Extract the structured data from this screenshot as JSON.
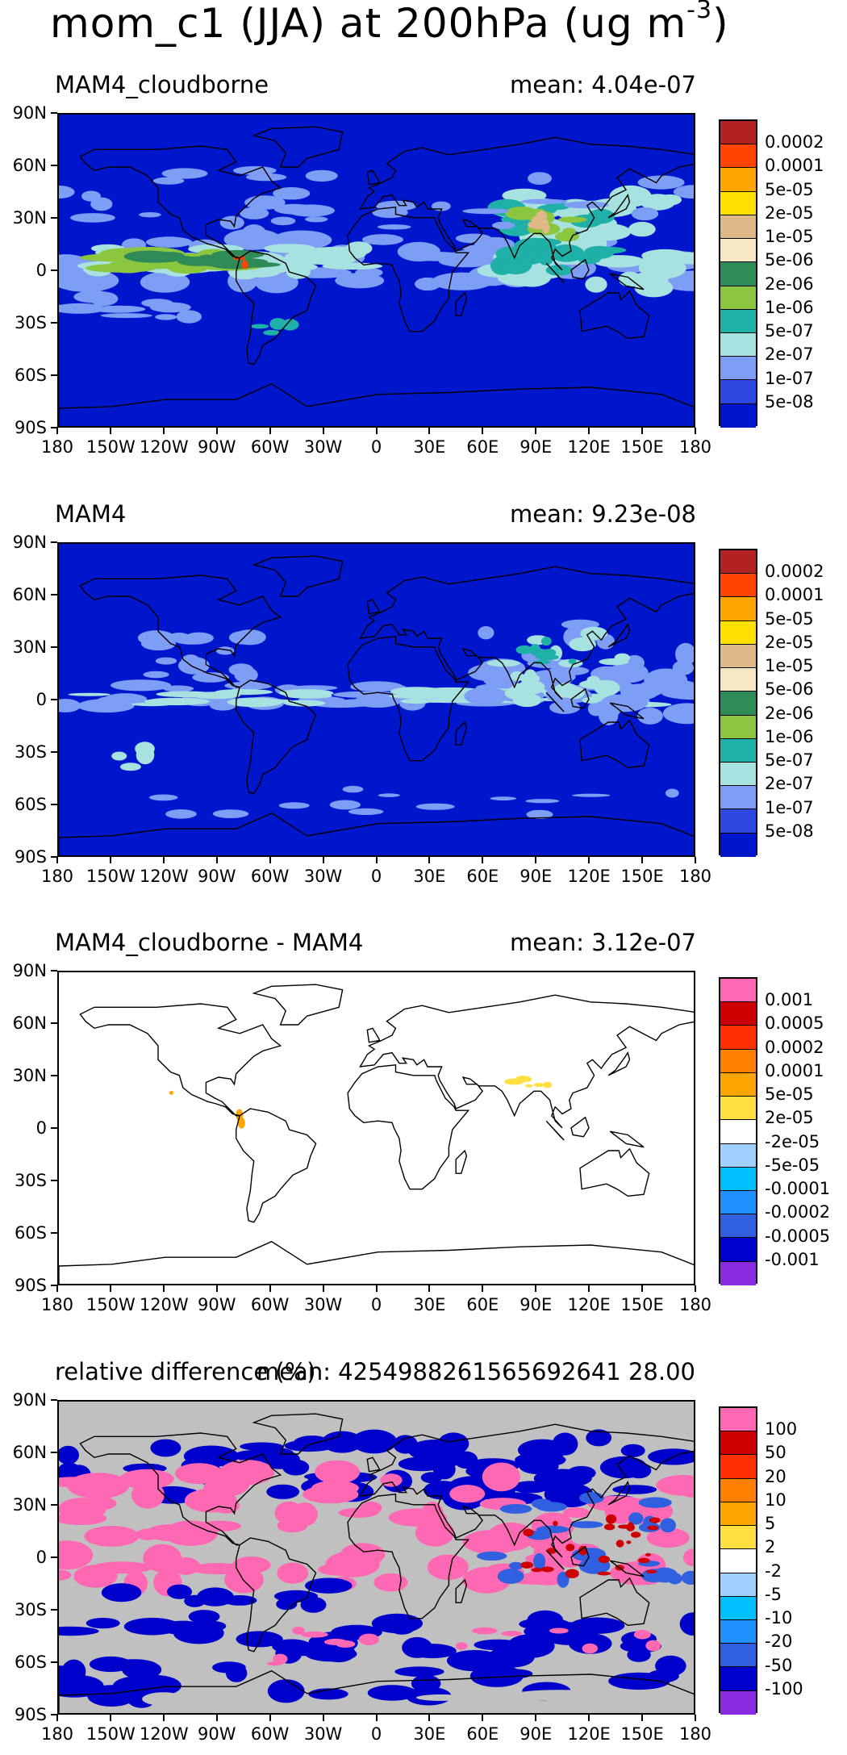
{
  "title_main": "mom_c1 (JJA) at 200hPa (ug m",
  "title_sup": "-3",
  "title_close": ")",
  "lat_ticks": [
    "90N",
    "60N",
    "30N",
    "0",
    "30S",
    "60S",
    "90S"
  ],
  "lon_ticks": [
    "180",
    "150W",
    "120W",
    "90W",
    "60W",
    "30W",
    "0",
    "30E",
    "60E",
    "90E",
    "120E",
    "150E",
    "180"
  ],
  "colors": {
    "abs_scale": [
      "#0016cc",
      "#2c48e0",
      "#7e9ef5",
      "#a7e2e0",
      "#1fb0a8",
      "#8cc63f",
      "#2e8b57",
      "#f5e6c4",
      "#deb887",
      "#ffe000",
      "#ffa500",
      "#ff4500",
      "#b22222"
    ],
    "diff_scale": [
      "#8a2be2",
      "#0000cd",
      "#3060e0",
      "#1e90ff",
      "#00bfff",
      "#a0d0ff",
      "#ffffff",
      "#ffe040",
      "#ffa500",
      "#ff7f00",
      "#ff3000",
      "#cc0000",
      "#ff69b4"
    ],
    "land_outline": "#000000",
    "missing_gray": "#c0c0c0"
  },
  "panels": [
    {
      "name": "MAM4_cloudborne",
      "mean": "mean: 4.04e-07",
      "colorbar_labels": [
        "0.0002",
        "0.0001",
        "5e-05",
        "2e-05",
        "1e-05",
        "5e-06",
        "2e-06",
        "1e-06",
        "5e-07",
        "2e-07",
        "1e-07",
        "5e-08"
      ]
    },
    {
      "name": "MAM4",
      "mean": "mean: 9.23e-08",
      "colorbar_labels": [
        "0.0002",
        "0.0001",
        "5e-05",
        "2e-05",
        "1e-05",
        "5e-06",
        "2e-06",
        "1e-06",
        "5e-07",
        "2e-07",
        "1e-07",
        "5e-08"
      ]
    },
    {
      "name": "MAM4_cloudborne - MAM4",
      "mean": "mean: 3.12e-07",
      "colorbar_labels": [
        "0.001",
        "0.0005",
        "0.0002",
        "0.0001",
        "5e-05",
        "2e-05",
        "-2e-05",
        "-5e-05",
        "-0.0001",
        "-0.0002",
        "-0.0005",
        "-0.001"
      ]
    },
    {
      "name": "relative difference (%)",
      "mean": "mean: 4254988261565692641 28.00",
      "colorbar_labels": [
        "100",
        "50",
        "20",
        "10",
        "5",
        "2",
        "-2",
        "-5",
        "-10",
        "-20",
        "-50",
        "-100"
      ]
    }
  ],
  "chart_data": [
    {
      "type": "heatmap",
      "title": "mom_c1 (JJA) at 200hPa (ug m-3)",
      "panel": "MAM4_cloudborne",
      "mean": 4.04e-07,
      "x": "longitude",
      "xlim": [
        -180,
        180
      ],
      "y": "latitude",
      "ylim": [
        -90,
        90
      ],
      "levels": [
        5e-08,
        1e-07,
        2e-07,
        5e-07,
        1e-06,
        2e-06,
        5e-06,
        1e-05,
        2e-05,
        5e-05,
        0.0001,
        0.0002
      ],
      "features": "tropical band 10S-20N with 1e-06 to 2e-06 values; maxima over South/East Asia (~2e-05) and Central America; background below 5e-08"
    },
    {
      "type": "heatmap",
      "panel": "MAM4",
      "mean": 9.23e-08,
      "x": "longitude",
      "xlim": [
        -180,
        180
      ],
      "y": "latitude",
      "ylim": [
        -90,
        90
      ],
      "levels": [
        5e-08,
        1e-07,
        2e-07,
        5e-07,
        1e-06,
        2e-06,
        5e-06,
        1e-05,
        2e-05,
        5e-05,
        0.0001,
        0.0002
      ],
      "features": "narrow tropical band around equator at 1e-07 to 5e-07; patches over Asia up to 1e-06; background below 5e-08"
    },
    {
      "type": "heatmap",
      "panel": "MAM4_cloudborne - MAM4",
      "mean": 3.12e-07,
      "x": "longitude",
      "xlim": [
        -180,
        180
      ],
      "y": "latitude",
      "ylim": [
        -90,
        90
      ],
      "levels": [
        -0.001,
        -0.0005,
        -0.0002,
        -0.0001,
        -5e-05,
        -2e-05,
        2e-05,
        5e-05,
        0.0001,
        0.0002,
        0.0005,
        0.001
      ],
      "features": "near-zero everywhere; small positive 2e-05 to 1e-04 patches over India/Tibet and Central America"
    },
    {
      "type": "heatmap",
      "panel": "relative difference (%)",
      "mean": "4254988261565692641 28.00",
      "x": "longitude",
      "xlim": [
        -180,
        180
      ],
      "y": "latitude",
      "ylim": [
        -90,
        90
      ],
      "levels": [
        -100,
        -50,
        -20,
        -10,
        -5,
        -2,
        2,
        5,
        10,
        20,
        50,
        100
      ],
      "features": "tropical band and mid-latitudes >100% (pink); large areas -100% (dark blue) at high latitudes; missing (gray) over much of southern hemisphere subtropics and Arctic"
    }
  ]
}
